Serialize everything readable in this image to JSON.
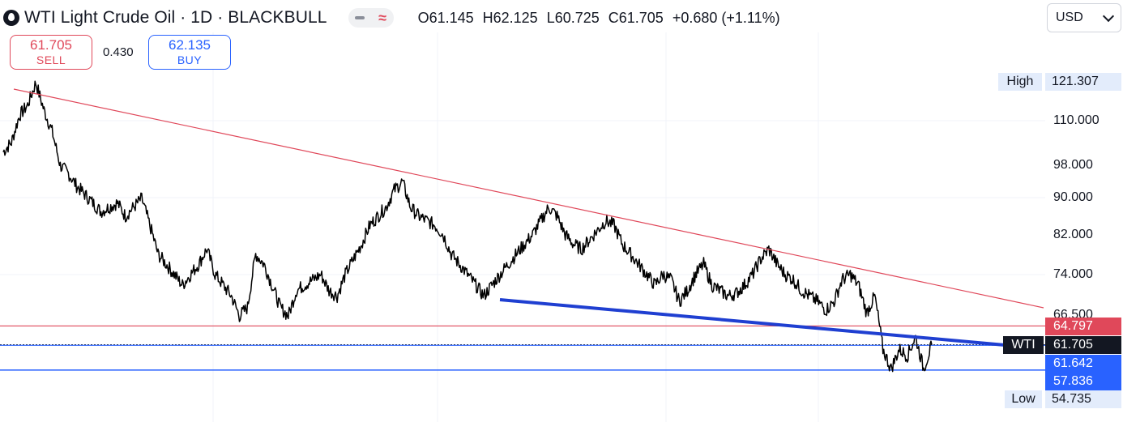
{
  "header": {
    "title": "WTI Light Crude Oil · 1D · BLACKBULL",
    "ohlc": {
      "open": "O61.145",
      "high": "H62.125",
      "low": "L60.725",
      "close": "C61.705",
      "change": "+0.680 (+1.11%)"
    },
    "currency": "USD"
  },
  "trade": {
    "sell_price": "61.705",
    "sell_label": "SELL",
    "spread": "0.430",
    "buy_price": "62.135",
    "buy_label": "BUY"
  },
  "price_axis": {
    "ticks": [
      "110.000",
      "98.000",
      "90.000",
      "82.000",
      "74.000",
      "66.500"
    ],
    "high_label": "High",
    "high_value": "121.307",
    "low_label": "Low",
    "low_value": "54.735",
    "current_symbol": "WTI",
    "current_price": "61.705",
    "red_line_price": "64.797",
    "blue_line_price_1": "61.642",
    "blue_line_price_2": "57.836"
  },
  "colors": {
    "red": "#e0485a",
    "blue": "#2962ff",
    "trendline_blue": "#1f3fd1",
    "price_line": "#000000",
    "tag_highlight": "#e3ecfb"
  },
  "chart_data": {
    "type": "line",
    "series": [
      {
        "values": [
          101.5,
          104,
          111.5,
          114.5,
          121.3,
          113,
          107,
          98,
          96,
          93,
          91,
          89,
          87,
          88,
          89,
          86,
          88,
          90,
          84,
          78,
          76,
          74,
          72,
          74,
          76,
          79,
          74,
          72,
          70,
          66.5,
          68,
          78,
          76,
          72,
          68,
          66.5,
          71,
          72,
          73,
          74,
          71,
          70,
          74,
          77,
          80,
          84,
          86,
          88,
          92,
          94,
          88,
          86,
          85,
          84,
          82,
          78,
          76,
          74,
          72,
          70,
          72,
          74,
          76,
          78,
          80,
          82,
          85,
          88,
          86,
          82,
          80,
          79,
          81,
          83,
          85,
          84,
          80,
          78,
          76,
          74,
          72,
          74,
          73,
          69,
          71,
          74,
          76,
          72,
          71,
          70,
          70.5,
          72,
          74,
          77,
          79,
          76,
          74,
          73,
          71,
          70,
          69,
          67.5,
          69,
          73,
          74,
          72,
          67,
          70,
          61,
          58,
          61,
          60,
          63,
          58,
          61.7
        ]
      }
    ],
    "y_scale": "log",
    "high": 121.307,
    "low": 54.735,
    "last": 61.705,
    "horizontal_lines": [
      64.797,
      61.642,
      57.836
    ]
  }
}
